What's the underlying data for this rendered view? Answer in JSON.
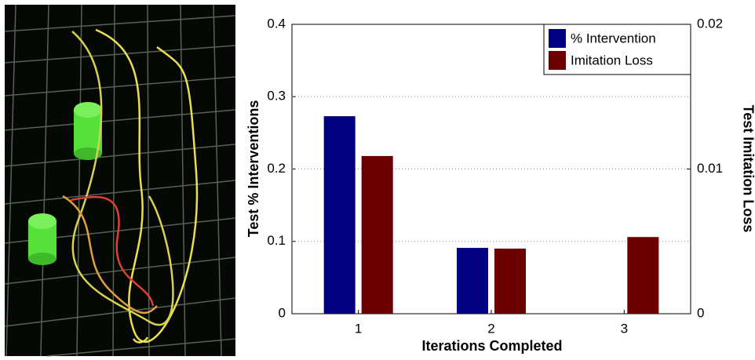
{
  "chart_data": {
    "type": "bar",
    "x_label": "Iterations Completed",
    "y_label": "Test % Interventions",
    "y2_label": "Test Imitation Loss",
    "categories": [
      "1",
      "2",
      "3"
    ],
    "series": [
      {
        "name": "% Intervention",
        "color": "#000080",
        "values": [
          0.273,
          0.091,
          null
        ]
      },
      {
        "name": "Imitation Loss",
        "color": "#6b0000",
        "axis": "y2",
        "values": [
          0.0109,
          0.0045,
          0.0053
        ]
      }
    ],
    "ylim": [
      0,
      0.4
    ],
    "yticks": [
      0,
      0.1,
      0.2,
      0.3,
      0.4
    ],
    "y2lim": [
      0,
      0.02
    ],
    "y2ticks": [
      0,
      0.01,
      0.02
    ],
    "grid": true,
    "legend": "upper right"
  }
}
